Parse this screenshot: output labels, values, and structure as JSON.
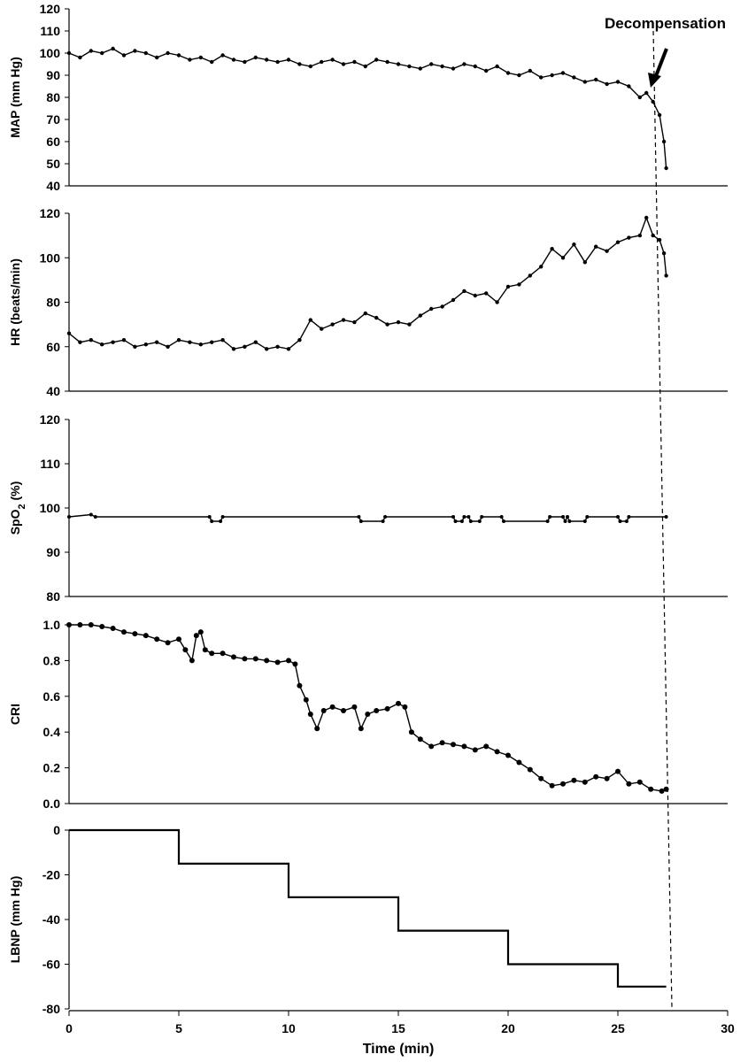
{
  "chart_data": [
    {
      "type": "line",
      "id": "map",
      "ylabel": "MAP (mm Hg)",
      "ylim": [
        40,
        120
      ],
      "yticks": [
        40,
        50,
        60,
        70,
        80,
        90,
        100,
        110,
        120
      ],
      "xlim": [
        0,
        30
      ],
      "series": [
        {
          "x": [
            0,
            0.5,
            1,
            1.5,
            2,
            2.5,
            3,
            3.5,
            4,
            4.5,
            5,
            5.5,
            6,
            6.5,
            7,
            7.5,
            8,
            8.5,
            9,
            9.5,
            10,
            10.5,
            11,
            11.5,
            12,
            12.5,
            13,
            13.5,
            14,
            14.5,
            15,
            15.5,
            16,
            16.5,
            17,
            17.5,
            18,
            18.5,
            19,
            19.5,
            20,
            20.5,
            21,
            21.5,
            22,
            22.5,
            23,
            23.5,
            24,
            24.5,
            25,
            25.5,
            26,
            26.3,
            26.6,
            26.9,
            27.1,
            27.2
          ],
          "values": [
            100,
            98,
            101,
            100,
            102,
            99,
            101,
            100,
            98,
            100,
            99,
            97,
            98,
            96,
            99,
            97,
            96,
            98,
            97,
            96,
            97,
            95,
            94,
            96,
            97,
            95,
            96,
            94,
            97,
            96,
            95,
            94,
            93,
            95,
            94,
            93,
            95,
            94,
            92,
            94,
            91,
            90,
            92,
            89,
            90,
            91,
            89,
            87,
            88,
            86,
            87,
            85,
            80,
            82,
            78,
            72,
            60,
            48
          ]
        }
      ]
    },
    {
      "type": "line",
      "id": "hr",
      "ylabel": "HR (beats/min)",
      "ylim": [
        40,
        120
      ],
      "yticks": [
        40,
        60,
        80,
        100,
        120
      ],
      "xlim": [
        0,
        30
      ],
      "series": [
        {
          "x": [
            0,
            0.5,
            1,
            1.5,
            2,
            2.5,
            3,
            3.5,
            4,
            4.5,
            5,
            5.5,
            6,
            6.5,
            7,
            7.5,
            8,
            8.5,
            9,
            9.5,
            10,
            10.5,
            11,
            11.5,
            12,
            12.5,
            13,
            13.5,
            14,
            14.5,
            15,
            15.5,
            16,
            16.5,
            17,
            17.5,
            18,
            18.5,
            19,
            19.5,
            20,
            20.5,
            21,
            21.5,
            22,
            22.5,
            23,
            23.5,
            24,
            24.5,
            25,
            25.5,
            26,
            26.3,
            26.6,
            26.9,
            27.1,
            27.2
          ],
          "values": [
            66,
            62,
            63,
            61,
            62,
            63,
            60,
            61,
            62,
            60,
            63,
            62,
            61,
            62,
            63,
            59,
            60,
            62,
            59,
            60,
            59,
            63,
            72,
            68,
            70,
            72,
            71,
            75,
            73,
            70,
            71,
            70,
            74,
            77,
            78,
            81,
            85,
            83,
            84,
            80,
            87,
            88,
            92,
            96,
            104,
            100,
            106,
            98,
            105,
            103,
            107,
            109,
            110,
            118,
            110,
            108,
            102,
            92
          ]
        }
      ]
    },
    {
      "type": "line",
      "id": "spo2",
      "ylabel": "SpO2 (%)",
      "ylim": [
        80,
        120
      ],
      "yticks": [
        80,
        90,
        100,
        110,
        120
      ],
      "xlim": [
        0,
        30
      ],
      "series": [
        {
          "x": [
            0,
            1,
            1.2,
            6.4,
            6.5,
            6.9,
            7,
            13.2,
            13.3,
            14.3,
            14.4,
            17.5,
            17.6,
            17.9,
            18,
            18.2,
            18.3,
            18.7,
            18.8,
            19.7,
            19.8,
            21.8,
            21.9,
            22.5,
            22.6,
            22.7,
            22.8,
            23.5,
            23.6,
            25,
            25.1,
            25.4,
            25.5,
            27.2
          ],
          "values": [
            98,
            98.5,
            98,
            98,
            97,
            97,
            98,
            98,
            97,
            97,
            98,
            98,
            97,
            97,
            98,
            98,
            97,
            97,
            98,
            98,
            97,
            97,
            98,
            98,
            97,
            98,
            97,
            97,
            98,
            98,
            97,
            97,
            98,
            98
          ]
        }
      ]
    },
    {
      "type": "line",
      "id": "cri",
      "ylabel": "CRI",
      "ylim": [
        0,
        1.0
      ],
      "yticks": [
        "0.0",
        "0.2",
        "0.4",
        "0.6",
        "0.8",
        "1.0"
      ],
      "xlim": [
        0,
        30
      ],
      "series": [
        {
          "x": [
            0,
            0.5,
            1,
            1.5,
            2,
            2.5,
            3,
            3.5,
            4,
            4.5,
            5,
            5.3,
            5.6,
            5.8,
            6.0,
            6.2,
            6.5,
            7,
            7.5,
            8,
            8.5,
            9,
            9.5,
            10,
            10.3,
            10.5,
            10.8,
            11.0,
            11.3,
            11.6,
            12.0,
            12.5,
            13.0,
            13.3,
            13.6,
            14.0,
            14.5,
            15.0,
            15.3,
            15.6,
            16.0,
            16.5,
            17.0,
            17.5,
            18.0,
            18.5,
            19.0,
            19.5,
            20.0,
            20.5,
            21.0,
            21.5,
            22.0,
            22.5,
            23.0,
            23.5,
            24.0,
            24.5,
            25.0,
            25.5,
            26.0,
            26.5,
            27.0,
            27.2
          ],
          "values": [
            1.0,
            1.0,
            1.0,
            0.99,
            0.98,
            0.96,
            0.95,
            0.94,
            0.92,
            0.9,
            0.92,
            0.86,
            0.8,
            0.94,
            0.96,
            0.86,
            0.84,
            0.84,
            0.82,
            0.81,
            0.81,
            0.8,
            0.79,
            0.8,
            0.78,
            0.66,
            0.58,
            0.5,
            0.42,
            0.52,
            0.54,
            0.52,
            0.54,
            0.42,
            0.5,
            0.52,
            0.53,
            0.56,
            0.54,
            0.4,
            0.36,
            0.32,
            0.34,
            0.33,
            0.32,
            0.3,
            0.32,
            0.29,
            0.27,
            0.23,
            0.19,
            0.14,
            0.1,
            0.11,
            0.13,
            0.12,
            0.15,
            0.14,
            0.18,
            0.11,
            0.12,
            0.08,
            0.07,
            0.08
          ]
        }
      ]
    },
    {
      "type": "line",
      "id": "lbnp",
      "ylabel": "LBNP (mm Hg)",
      "xlabel": "Time (min)",
      "ylim": [
        -80,
        0
      ],
      "yticks": [
        -80,
        -60,
        -40,
        -20,
        0
      ],
      "xlim": [
        0,
        30
      ],
      "xticks": [
        0,
        5,
        10,
        15,
        20,
        25,
        30
      ],
      "series": [
        {
          "x": [
            0,
            5,
            5,
            10,
            10,
            15,
            15,
            20,
            20,
            25,
            25,
            27.2
          ],
          "values": [
            0,
            0,
            -15,
            -15,
            -30,
            -30,
            -45,
            -45,
            -60,
            -60,
            -70,
            -70
          ]
        }
      ]
    }
  ],
  "annotation": {
    "text": "Decompensation"
  }
}
